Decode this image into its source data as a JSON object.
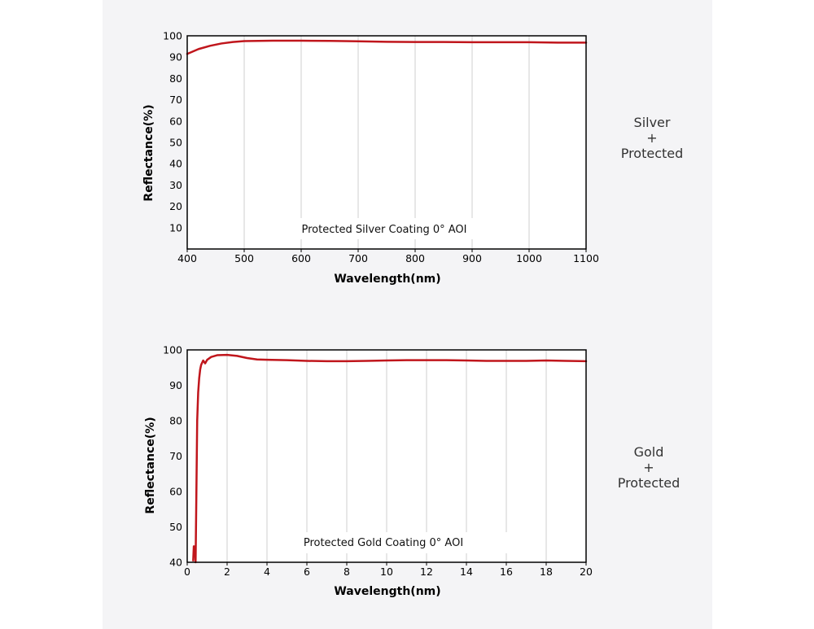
{
  "colors": {
    "curve": "#c0161c",
    "grid": "#d7d7d7",
    "axis": "#000000",
    "plot_bg": "#ffffff",
    "panel_bg": "#f4f4f6"
  },
  "labels": {
    "silver": {
      "line1": "Silver",
      "line2": "+",
      "line3": "Protected"
    },
    "gold": {
      "line1": "Gold",
      "line2": "+",
      "line3": "Protected"
    }
  },
  "chart_data": [
    {
      "type": "line",
      "title": "",
      "annotation": "Protected Silver Coating  0°  AOI",
      "xlabel": "Wavelength(nm)",
      "ylabel": "Reflectance(%)",
      "xlim": [
        400,
        1100
      ],
      "ylim": [
        0,
        100
      ],
      "x_ticks": [
        400,
        500,
        600,
        700,
        800,
        900,
        1000,
        1100
      ],
      "y_ticks": [
        10,
        20,
        30,
        40,
        50,
        60,
        70,
        80,
        90,
        100
      ],
      "grid": "vertical",
      "series": [
        {
          "x": [
            400,
            420,
            440,
            460,
            480,
            500,
            550,
            600,
            650,
            700,
            750,
            800,
            850,
            900,
            950,
            1000,
            1050,
            1100
          ],
          "y": [
            91.5,
            93.8,
            95.3,
            96.4,
            97.1,
            97.5,
            97.7,
            97.7,
            97.6,
            97.4,
            97.2,
            97.1,
            97.1,
            97.0,
            97.0,
            97.0,
            96.8,
            96.8
          ]
        }
      ]
    },
    {
      "type": "line",
      "title": "",
      "annotation": "Protected Gold Coating  0°  AOI",
      "xlabel": "Wavelength(nm)",
      "ylabel": "Reflectance(%)",
      "xlim": [
        0,
        20
      ],
      "ylim": [
        40,
        100
      ],
      "x_ticks": [
        0,
        2,
        4,
        6,
        8,
        10,
        12,
        14,
        16,
        18,
        20
      ],
      "y_ticks": [
        40,
        50,
        60,
        70,
        80,
        90,
        100
      ],
      "grid": "vertical",
      "series": [
        {
          "x": [
            0.3,
            0.33,
            0.36,
            0.39,
            0.42,
            0.45,
            0.5,
            0.55,
            0.6,
            0.65,
            0.7,
            0.8,
            0.9,
            1.0,
            1.2,
            1.5,
            2.0,
            2.5,
            3.0,
            3.5,
            4.0,
            5.0,
            6.0,
            7.0,
            8.0,
            9.0,
            10.0,
            11.0,
            12.0,
            13.0,
            14.0,
            15.0,
            16.0,
            17.0,
            18.0,
            19.0,
            20.0
          ],
          "y": [
            40.5,
            44.5,
            42.0,
            44.5,
            40.0,
            55.0,
            80.0,
            88.0,
            92.0,
            94.5,
            95.8,
            97.0,
            96.2,
            97.2,
            98.0,
            98.5,
            98.6,
            98.3,
            97.7,
            97.3,
            97.2,
            97.1,
            96.9,
            96.8,
            96.8,
            96.9,
            97.0,
            97.1,
            97.1,
            97.1,
            97.0,
            96.9,
            96.9,
            96.9,
            97.0,
            96.9,
            96.8
          ]
        }
      ]
    }
  ]
}
